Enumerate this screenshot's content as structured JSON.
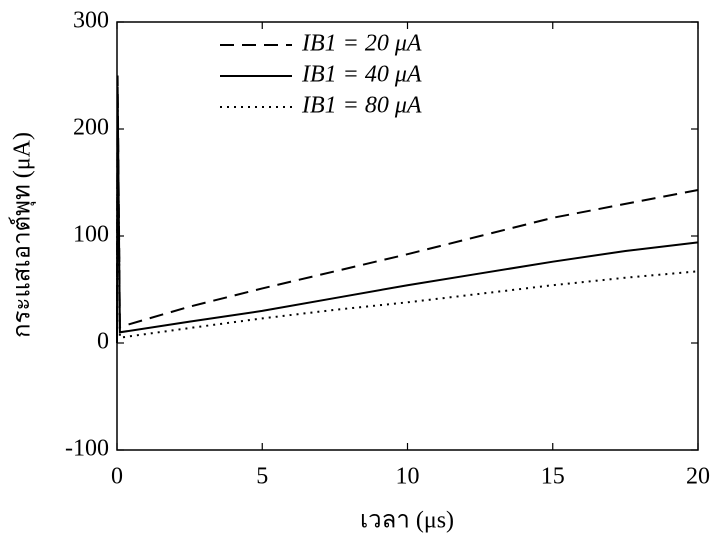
{
  "chart_data": {
    "type": "line",
    "xlabel": "เวลา (μs)",
    "ylabel": "กระแสเอาต์พุท (μA)",
    "x": [
      0,
      0.02,
      0.1,
      2.5,
      5,
      7.5,
      10,
      12.5,
      15,
      17.5,
      20
    ],
    "series": [
      {
        "name": "IB1 = 20 μA",
        "color": "#000000",
        "style": "dashed",
        "values": [
          0,
          250,
          15,
          34,
          51,
          67,
          83,
          100,
          117,
          130,
          143
        ]
      },
      {
        "name": "IB1 = 40 μA",
        "color": "#000000",
        "style": "solid",
        "values": [
          0,
          240,
          10,
          20,
          30,
          42,
          54,
          65,
          76,
          86,
          94
        ]
      },
      {
        "name": "IB1 = 80 μA",
        "color": "#000000",
        "style": "dotted",
        "values": [
          0,
          230,
          5,
          14,
          23,
          31,
          38,
          46,
          54,
          61,
          67
        ]
      }
    ],
    "xlim": [
      0,
      20
    ],
    "xticks": [
      0,
      5,
      10,
      15,
      20
    ],
    "ylim": [
      -100,
      300
    ],
    "yticks": [
      -100,
      0,
      100,
      200,
      300
    ],
    "legend": "upper left",
    "grid": false
  }
}
